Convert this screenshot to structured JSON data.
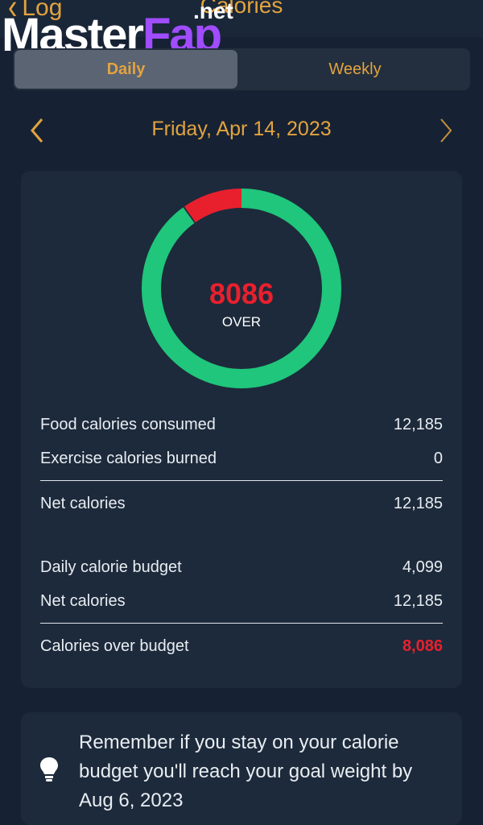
{
  "header": {
    "back_label": "Log",
    "title": "Calories",
    "back_icon": "chevron-left-icon"
  },
  "watermark": {
    "main_white": "Master",
    "main_purple": "Fap",
    "suffix": ".net"
  },
  "tabs": {
    "daily": "Daily",
    "weekly": "Weekly",
    "selected": "Daily"
  },
  "date_nav": {
    "label": "Friday, Apr 14, 2023",
    "prev_icon": "chevron-left-icon",
    "next_icon": "chevron-right-icon"
  },
  "ring": {
    "value": "8086",
    "caption": "OVER",
    "over_fraction": 0.097,
    "colors": {
      "good": "#1fc67b",
      "over": "#e8202e"
    }
  },
  "summary": {
    "food_label": "Food calories consumed",
    "food_value": "12,185",
    "exercise_label": "Exercise calories burned",
    "exercise_value": "0",
    "net_label": "Net calories",
    "net_value": "12,185",
    "budget_label": "Daily calorie budget",
    "budget_value": "4,099",
    "net2_label": "Net calories",
    "net2_value": "12,185",
    "over_label": "Calories over budget",
    "over_value": "8,086"
  },
  "tip": {
    "icon": "lightbulb-icon",
    "text": "Remember if you stay on your calorie budget you'll reach your goal weight by Aug 6, 2023"
  },
  "colors": {
    "accent": "#e3a33f",
    "background": "#162233",
    "card": "#1d2a3b",
    "alert": "#e8202e"
  }
}
